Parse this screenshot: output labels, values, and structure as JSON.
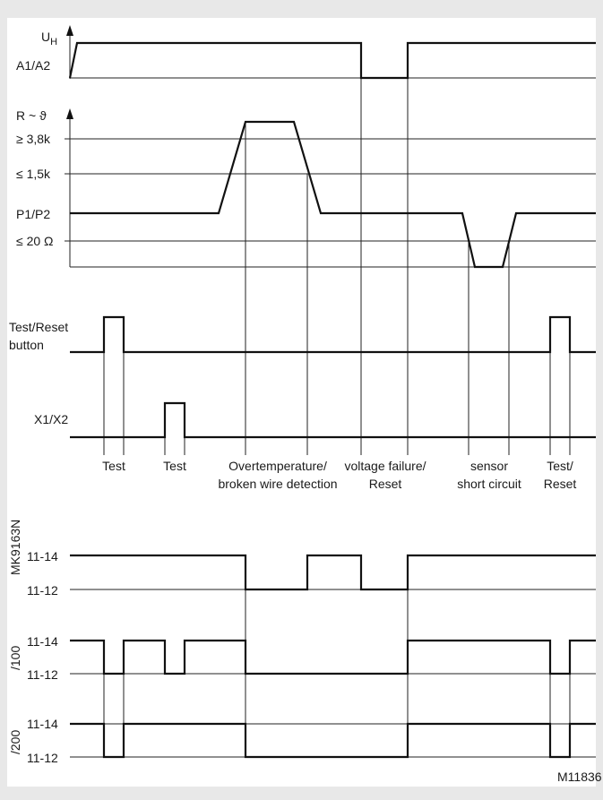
{
  "figure_id": "M11836",
  "signals": {
    "supply": {
      "symbol": "U",
      "subscript": "H",
      "label": "A1/A2"
    },
    "resistance": {
      "axis_label": "R ~ ϑ",
      "levels": [
        "≥ 3,8k",
        "≤ 1,5k",
        "P1/P2",
        "≤ 20 Ω"
      ]
    },
    "test_reset": {
      "label_line1": "Test/Reset",
      "label_line2": "button"
    },
    "x1x2": {
      "label": "X1/X2"
    }
  },
  "events": [
    {
      "line1": "Test",
      "line2": ""
    },
    {
      "line1": "Test",
      "line2": ""
    },
    {
      "line1": "Overtemperature/",
      "line2": "broken wire detection"
    },
    {
      "line1": "voltage failure/",
      "line2": "Reset"
    },
    {
      "line1": "sensor",
      "line2": "short circuit"
    },
    {
      "line1": "Test/",
      "line2": "Reset"
    }
  ],
  "outputs": [
    {
      "variant": "MK9163N",
      "upper": "11-14",
      "lower": "11-12"
    },
    {
      "variant": "/100",
      "upper": "11-14",
      "lower": "11-12"
    },
    {
      "variant": "/200",
      "upper": "11-14",
      "lower": "11-12"
    }
  ]
}
